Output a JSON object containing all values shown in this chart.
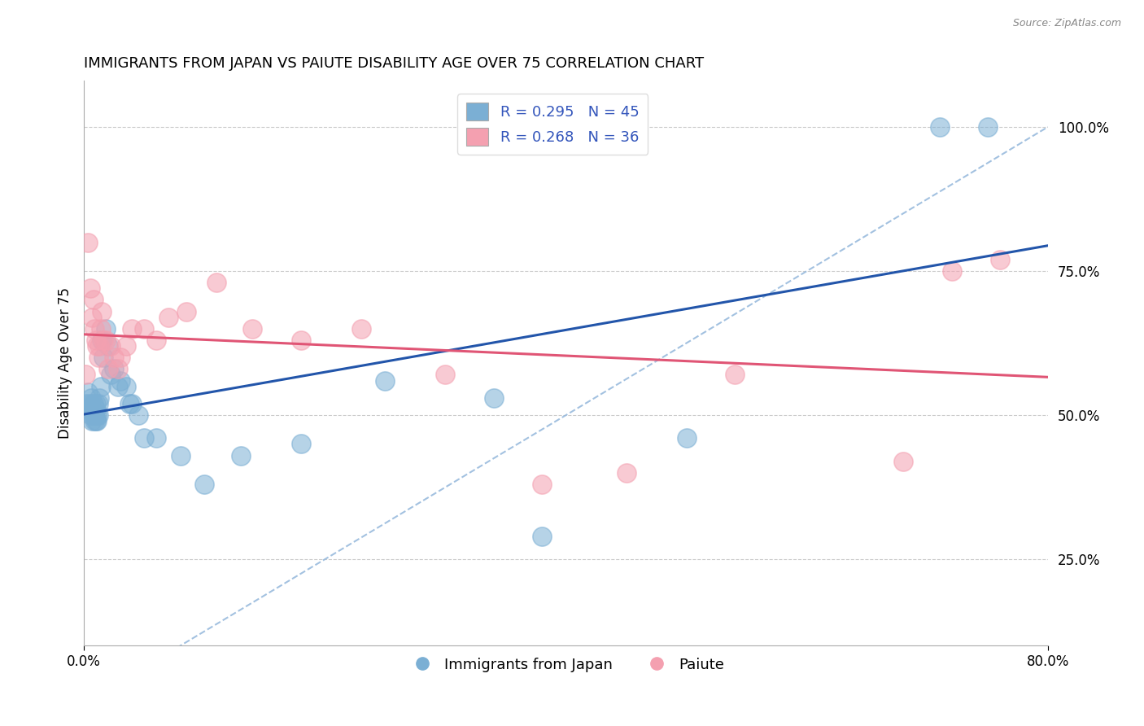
{
  "title": "IMMIGRANTS FROM JAPAN VS PAIUTE DISABILITY AGE OVER 75 CORRELATION CHART",
  "source_text": "Source: ZipAtlas.com",
  "ylabel": "Disability Age Over 75",
  "xlim": [
    0.0,
    0.8
  ],
  "ylim": [
    0.1,
    1.08
  ],
  "ytick_positions": [
    0.25,
    0.5,
    0.75,
    1.0
  ],
  "ytick_labels": [
    "25.0%",
    "50.0%",
    "75.0%",
    "100.0%"
  ],
  "legend1_label": "R = 0.295   N = 45",
  "legend2_label": "R = 0.268   N = 36",
  "legend_bottom_label1": "Immigrants from Japan",
  "legend_bottom_label2": "Paiute",
  "blue_color": "#7BAFD4",
  "pink_color": "#F4A0B0",
  "trend_blue": "#2255AA",
  "trend_pink": "#E05575",
  "diag_color": "#99BBDD",
  "grid_color": "#CCCCCC",
  "japan_x": [
    0.002,
    0.003,
    0.004,
    0.005,
    0.006,
    0.006,
    0.007,
    0.007,
    0.008,
    0.008,
    0.009,
    0.009,
    0.01,
    0.01,
    0.01,
    0.011,
    0.011,
    0.012,
    0.012,
    0.013,
    0.014,
    0.015,
    0.016,
    0.018,
    0.02,
    0.022,
    0.025,
    0.028,
    0.03,
    0.035,
    0.038,
    0.04,
    0.045,
    0.05,
    0.06,
    0.08,
    0.1,
    0.13,
    0.18,
    0.25,
    0.34,
    0.38,
    0.5,
    0.71,
    0.75
  ],
  "japan_y": [
    0.52,
    0.54,
    0.51,
    0.52,
    0.53,
    0.5,
    0.51,
    0.49,
    0.52,
    0.5,
    0.5,
    0.49,
    0.51,
    0.49,
    0.52,
    0.5,
    0.49,
    0.5,
    0.52,
    0.53,
    0.55,
    0.63,
    0.6,
    0.65,
    0.62,
    0.57,
    0.58,
    0.55,
    0.56,
    0.55,
    0.52,
    0.52,
    0.5,
    0.46,
    0.46,
    0.43,
    0.38,
    0.43,
    0.45,
    0.56,
    0.53,
    0.29,
    0.46,
    1.0,
    1.0
  ],
  "paiute_x": [
    0.001,
    0.003,
    0.005,
    0.007,
    0.008,
    0.009,
    0.01,
    0.011,
    0.012,
    0.013,
    0.014,
    0.015,
    0.016,
    0.018,
    0.02,
    0.022,
    0.025,
    0.028,
    0.03,
    0.035,
    0.04,
    0.05,
    0.06,
    0.07,
    0.085,
    0.11,
    0.14,
    0.18,
    0.23,
    0.3,
    0.38,
    0.45,
    0.54,
    0.68,
    0.72,
    0.76
  ],
  "paiute_y": [
    0.57,
    0.8,
    0.72,
    0.67,
    0.7,
    0.65,
    0.63,
    0.62,
    0.6,
    0.62,
    0.65,
    0.68,
    0.63,
    0.63,
    0.58,
    0.62,
    0.6,
    0.58,
    0.6,
    0.62,
    0.65,
    0.65,
    0.63,
    0.67,
    0.68,
    0.73,
    0.65,
    0.63,
    0.65,
    0.57,
    0.38,
    0.4,
    0.57,
    0.42,
    0.75,
    0.77
  ]
}
